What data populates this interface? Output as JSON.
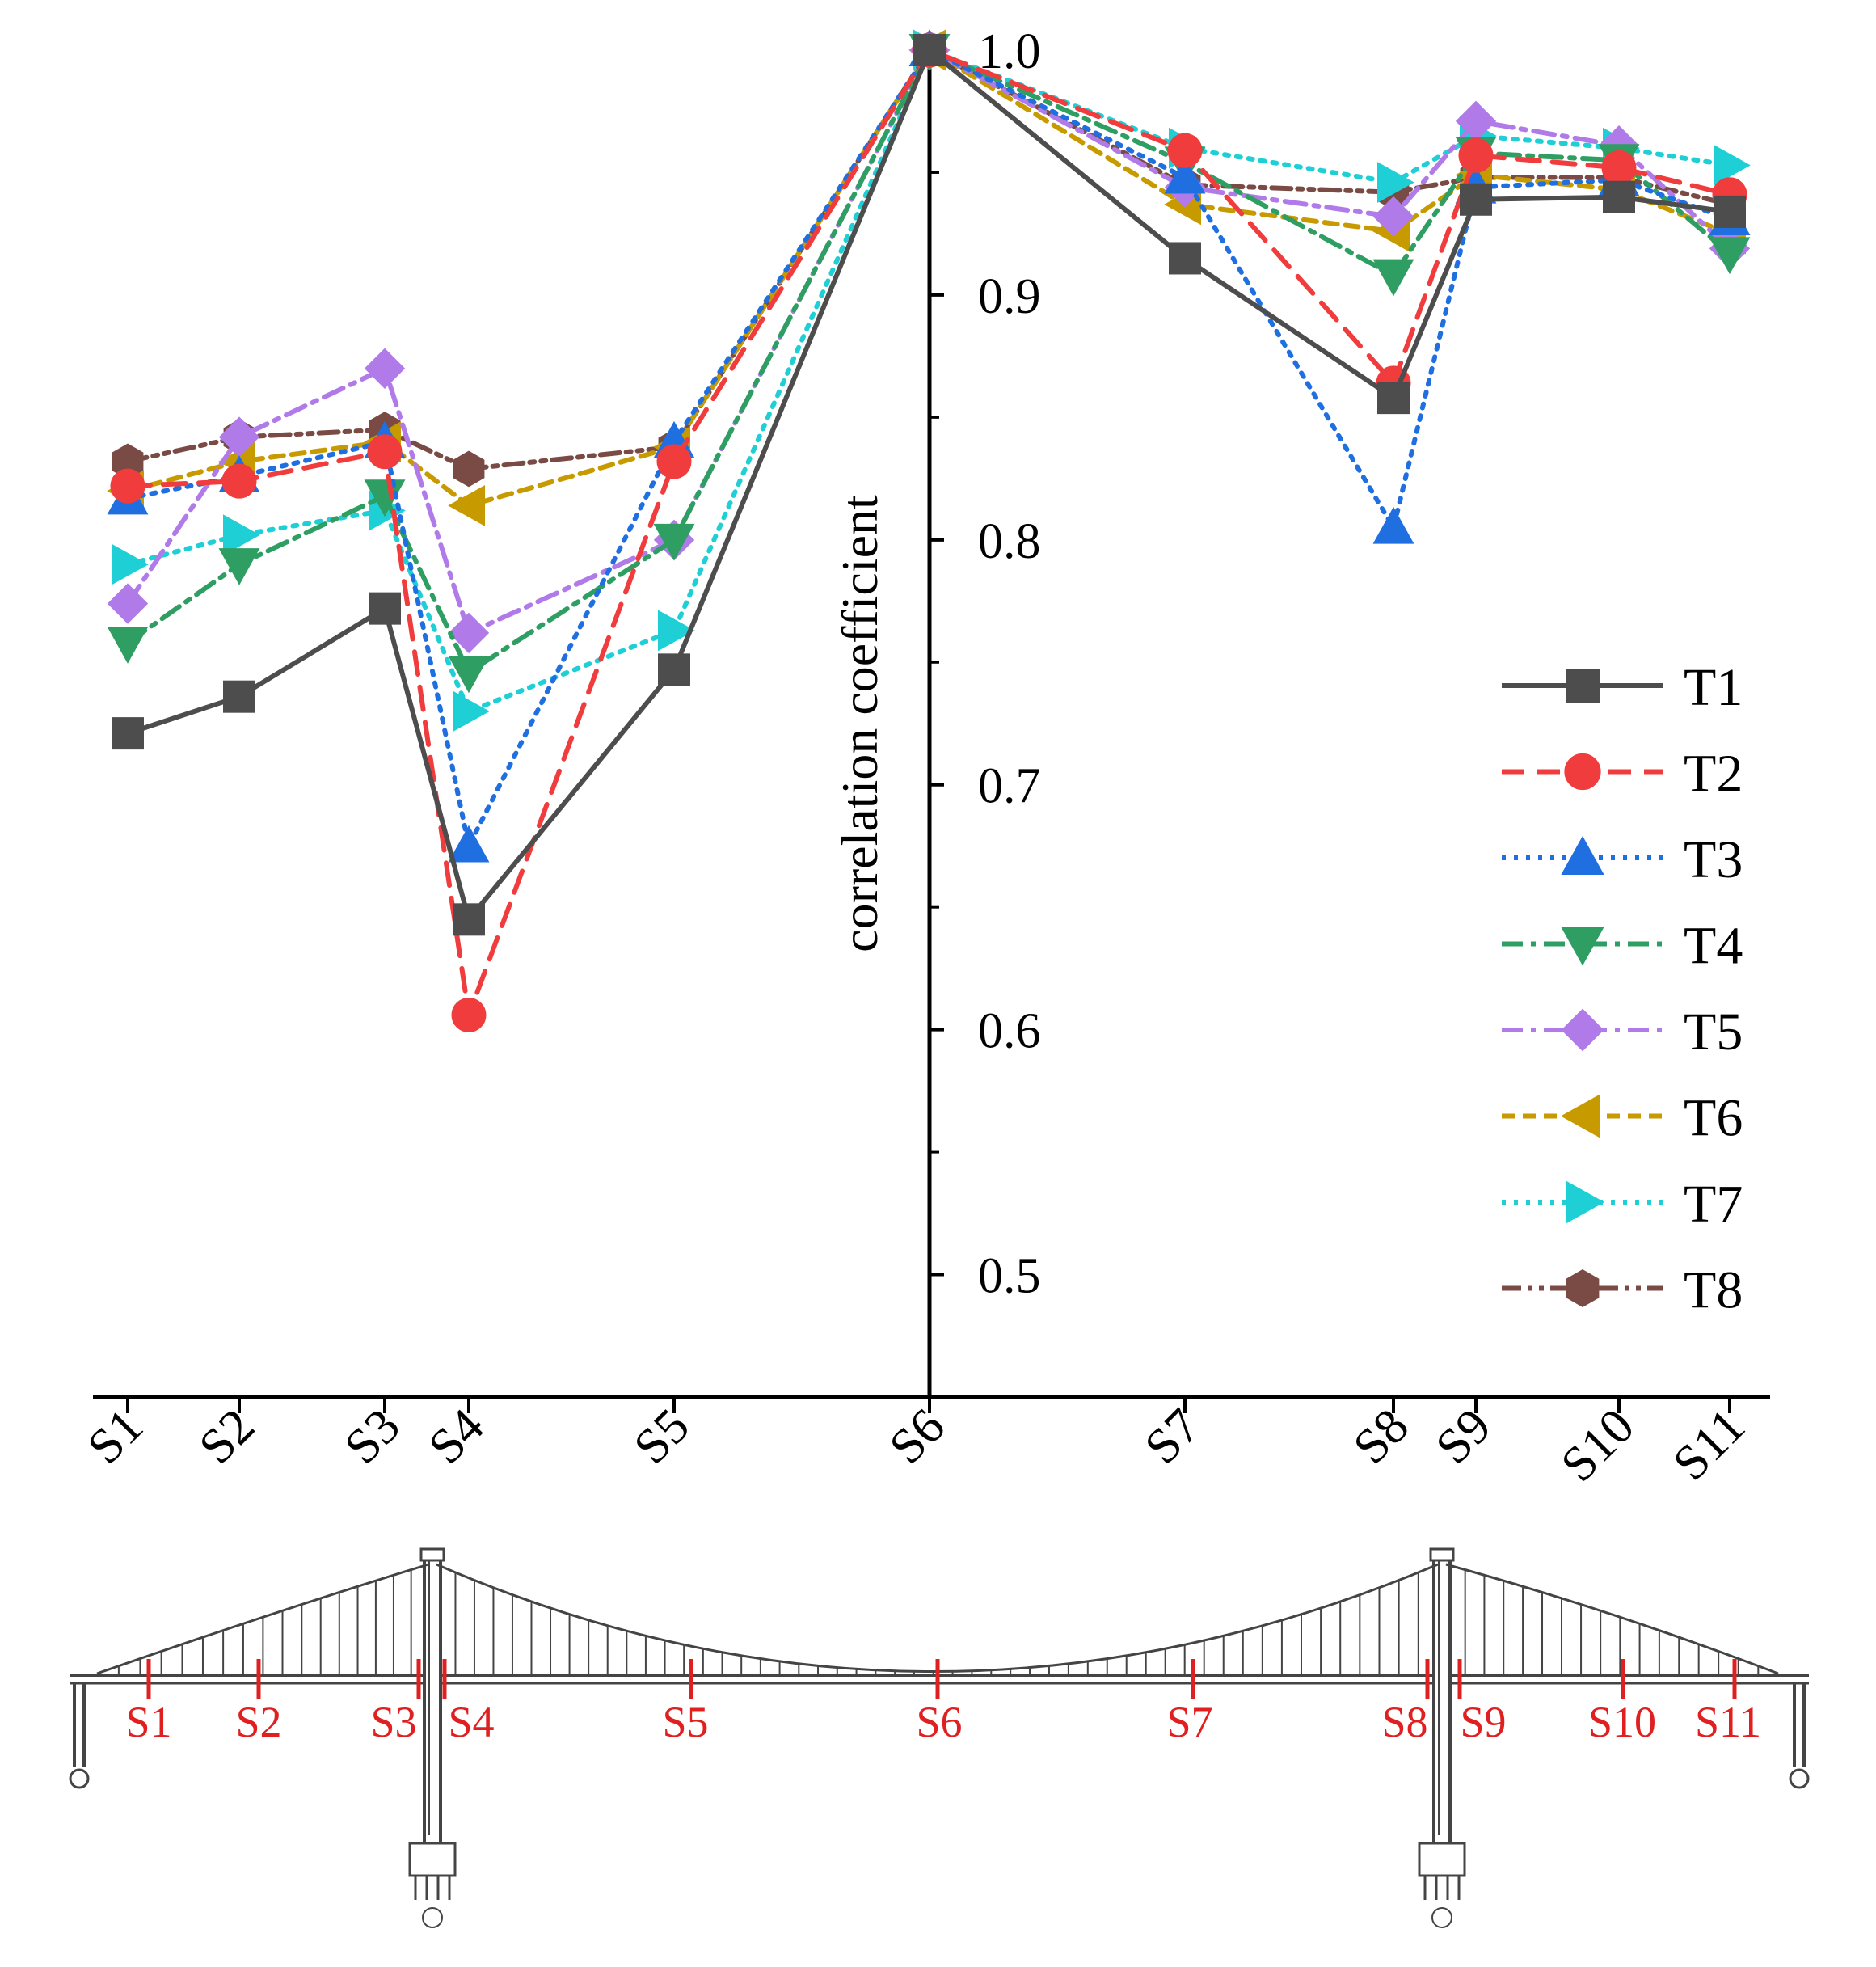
{
  "chart_data": {
    "type": "line",
    "title": "",
    "xlabel": "",
    "ylabel": "correlation coefficient",
    "ylim": [
      0.45,
      1.0
    ],
    "yticks": [
      "0.5",
      "0.6",
      "0.7",
      "0.8",
      "0.9",
      "1.0"
    ],
    "grid": false,
    "legend": "right",
    "categories": [
      "S1",
      "S2",
      "S3",
      "S4",
      "S5",
      "S6",
      "S7",
      "S8",
      "S9",
      "S10",
      "S11"
    ],
    "series": [
      {
        "name": "T1",
        "color": "#4d4d4d",
        "marker": "square",
        "dash": "solid",
        "values": [
          0.721,
          0.736,
          0.772,
          0.645,
          0.747,
          1.0,
          0.915,
          0.858,
          0.939,
          0.94,
          0.934
        ]
      },
      {
        "name": "T2",
        "color": "#f03c3c",
        "marker": "circle",
        "dash": "dash",
        "values": [
          0.822,
          0.824,
          0.836,
          0.606,
          0.832,
          1.0,
          0.959,
          0.864,
          0.957,
          0.952,
          0.941
        ]
      },
      {
        "name": "T3",
        "color": "#1f6fe0",
        "marker": "triangle-up",
        "dash": "dot",
        "values": [
          0.817,
          0.826,
          0.84,
          0.675,
          0.84,
          1.0,
          0.948,
          0.805,
          0.944,
          0.947,
          0.931
        ]
      },
      {
        "name": "T4",
        "color": "#2e9e63",
        "marker": "triangle-down",
        "dash": "dashdot",
        "values": [
          0.758,
          0.79,
          0.818,
          0.746,
          0.8,
          1.0,
          0.954,
          0.908,
          0.958,
          0.955,
          0.917
        ]
      },
      {
        "name": "T5",
        "color": "#b07be8",
        "marker": "diamond",
        "dash": "dashdot",
        "values": [
          0.774,
          0.842,
          0.87,
          0.762,
          0.8,
          1.0,
          0.944,
          0.932,
          0.971,
          0.961,
          0.919
        ]
      },
      {
        "name": "T6",
        "color": "#c79a00",
        "marker": "triangle-left",
        "dash": "shortdash",
        "values": [
          0.82,
          0.832,
          0.84,
          0.814,
          0.838,
          1.0,
          0.937,
          0.926,
          0.949,
          0.943,
          0.925
        ]
      },
      {
        "name": "T7",
        "color": "#1ecfd6",
        "marker": "triangle-right",
        "dash": "dot",
        "values": [
          0.79,
          0.802,
          0.812,
          0.73,
          0.763,
          1.0,
          0.96,
          0.946,
          0.965,
          0.96,
          0.953
        ]
      },
      {
        "name": "T8",
        "color": "#7a4b45",
        "marker": "hexagon",
        "dash": "dashdotdot",
        "values": [
          0.832,
          0.842,
          0.845,
          0.829,
          0.838,
          1.0,
          0.945,
          0.942,
          0.948,
          0.948,
          0.937
        ]
      }
    ]
  },
  "bridge": {
    "section_labels": [
      "S1",
      "S2",
      "S3",
      "S4",
      "S5",
      "S6",
      "S7",
      "S8",
      "S9",
      "S10",
      "S11"
    ],
    "label_color": "#e02020"
  }
}
